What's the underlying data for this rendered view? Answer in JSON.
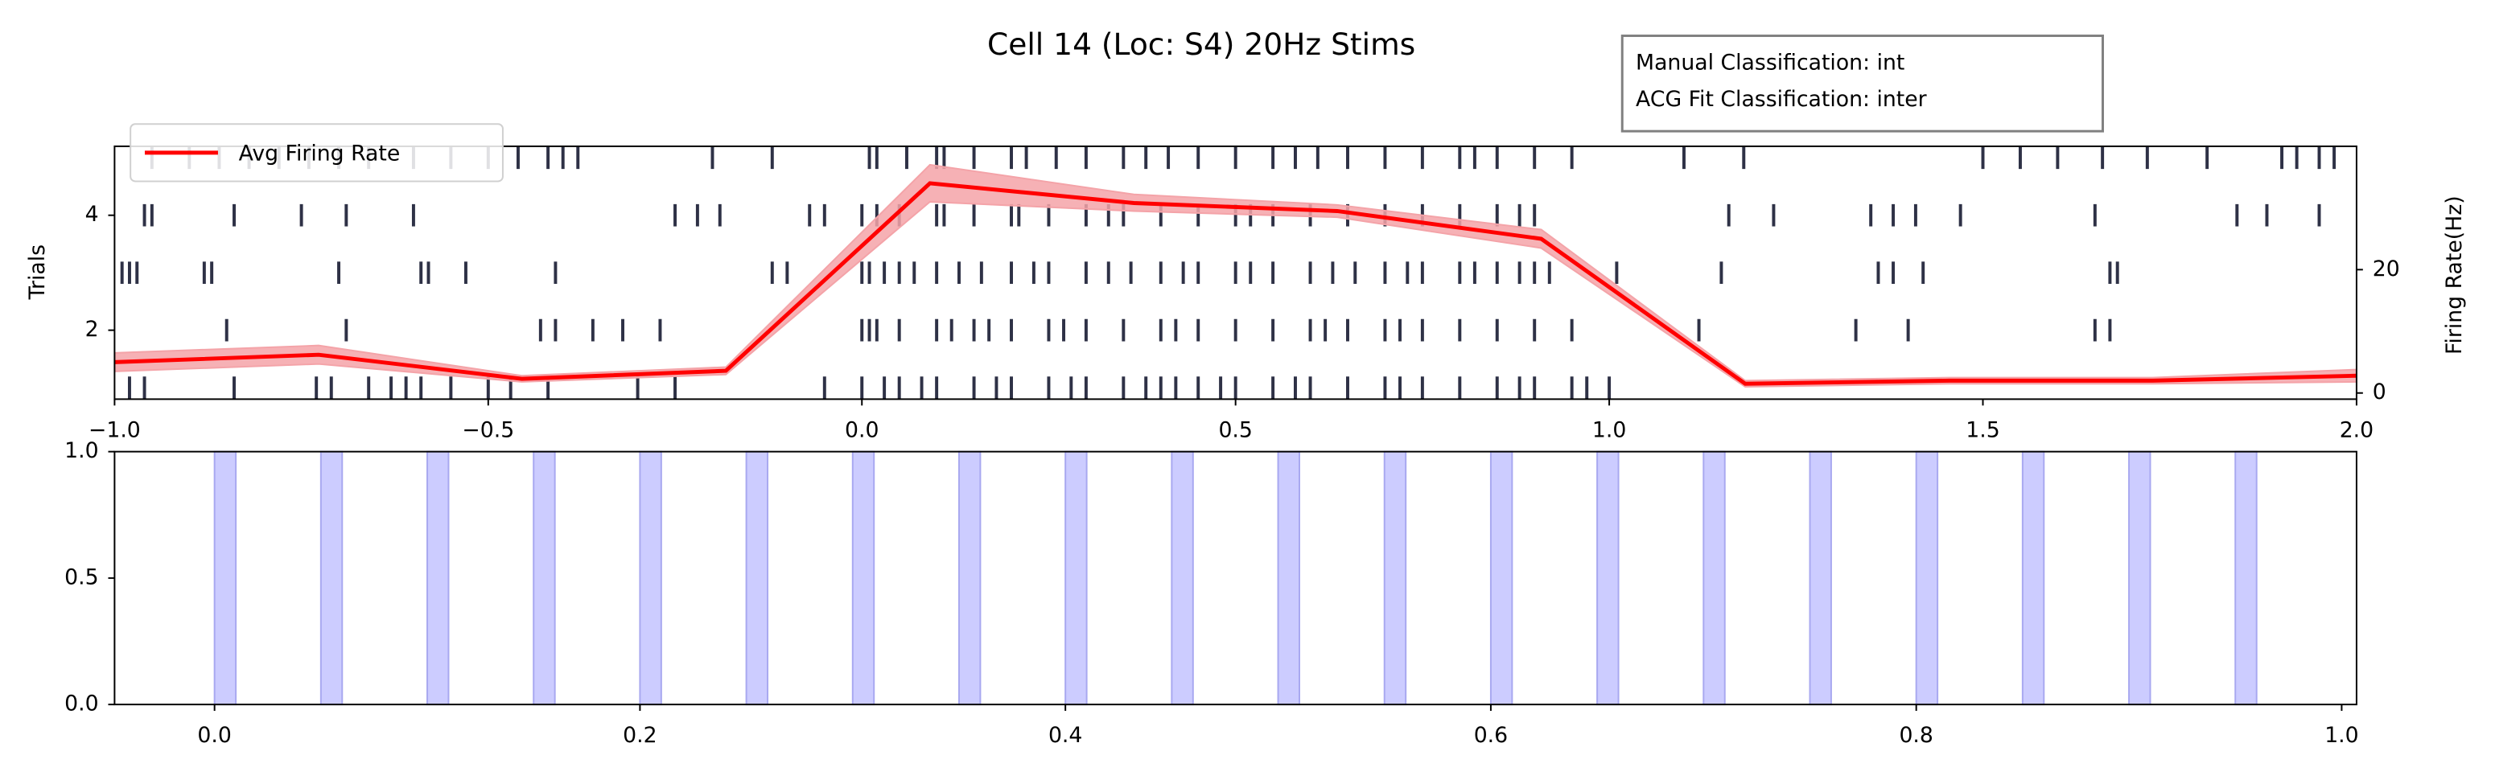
{
  "chart_data": [
    {
      "type": "raster",
      "title": "Cell 14 (Loc: S4) 20Hz Stims",
      "annotation": [
        "Manual Classification: int",
        "ACG Fit Classification: inter"
      ],
      "ylabel": "Trials",
      "y2label": "Firing Rate(Hz)",
      "xlim": [
        -1.0,
        2.0
      ],
      "ylim": [
        0.8,
        5.2
      ],
      "y2lim": [
        -1,
        40
      ],
      "xticks": [
        {
          "value": -1.0,
          "label": "−1.0"
        },
        {
          "value": -0.5,
          "label": "−0.5"
        },
        {
          "value": 0.0,
          "label": "0.0"
        },
        {
          "value": 0.5,
          "label": "0.5"
        },
        {
          "value": 1.0,
          "label": "1.0"
        },
        {
          "value": 1.5,
          "label": "1.5"
        },
        {
          "value": 2.0,
          "label": "2.0"
        }
      ],
      "yticks": [
        2,
        4
      ],
      "y2ticks": [
        0,
        20
      ],
      "raster_color": "#2e3146",
      "raster": [
        {
          "y": 1,
          "x": [
            -0.98,
            -0.96,
            -0.84,
            -0.73,
            -0.71,
            -0.66,
            -0.63,
            -0.61,
            -0.59,
            -0.55,
            -0.5,
            -0.47,
            -0.42,
            -0.3,
            -0.25,
            -0.05,
            0.0,
            0.03,
            0.05,
            0.08,
            0.1,
            0.15,
            0.18,
            0.2,
            0.25,
            0.28,
            0.3,
            0.35,
            0.38,
            0.4,
            0.42,
            0.45,
            0.48,
            0.5,
            0.55,
            0.58,
            0.6,
            0.65,
            0.7,
            0.72,
            0.75,
            0.8,
            0.85,
            0.88,
            0.9,
            0.95,
            0.97,
            1.0
          ]
        },
        {
          "y": 2,
          "x": [
            -0.85,
            -0.69,
            -0.43,
            -0.41,
            -0.36,
            -0.32,
            -0.27,
            0.0,
            0.01,
            0.02,
            0.05,
            0.1,
            0.12,
            0.15,
            0.17,
            0.2,
            0.25,
            0.27,
            0.3,
            0.35,
            0.4,
            0.42,
            0.45,
            0.5,
            0.55,
            0.6,
            0.62,
            0.65,
            0.7,
            0.72,
            0.75,
            0.8,
            0.85,
            0.9,
            0.95,
            1.12,
            1.33,
            1.4,
            1.65,
            1.67
          ]
        },
        {
          "y": 3,
          "x": [
            -0.99,
            -0.98,
            -0.97,
            -0.88,
            -0.87,
            -0.7,
            -0.59,
            -0.58,
            -0.53,
            -0.41,
            -0.12,
            -0.1,
            0.0,
            0.01,
            0.03,
            0.05,
            0.07,
            0.1,
            0.13,
            0.16,
            0.2,
            0.23,
            0.25,
            0.3,
            0.33,
            0.36,
            0.4,
            0.43,
            0.45,
            0.5,
            0.52,
            0.55,
            0.6,
            0.63,
            0.66,
            0.7,
            0.73,
            0.75,
            0.8,
            0.82,
            0.85,
            0.88,
            0.9,
            0.92,
            1.01,
            1.15,
            1.36,
            1.38,
            1.42,
            1.67,
            1.68
          ]
        },
        {
          "y": 4,
          "x": [
            -0.96,
            -0.95,
            -0.84,
            -0.75,
            -0.69,
            -0.6,
            -0.25,
            -0.22,
            -0.19,
            -0.07,
            -0.05,
            0.0,
            0.02,
            0.05,
            0.1,
            0.11,
            0.15,
            0.2,
            0.21,
            0.25,
            0.3,
            0.33,
            0.35,
            0.4,
            0.45,
            0.5,
            0.52,
            0.55,
            0.6,
            0.65,
            0.7,
            0.75,
            0.8,
            0.85,
            0.88,
            0.9,
            1.16,
            1.22,
            1.35,
            1.38,
            1.41,
            1.47,
            1.65,
            1.84,
            1.88,
            1.95
          ]
        },
        {
          "y": 5,
          "x": [
            -0.95,
            -0.9,
            -0.86,
            -0.82,
            -0.78,
            -0.74,
            -0.7,
            -0.66,
            -0.6,
            -0.55,
            -0.5,
            -0.46,
            -0.42,
            -0.4,
            -0.38,
            -0.2,
            -0.12,
            0.01,
            0.02,
            0.06,
            0.1,
            0.11,
            0.15,
            0.2,
            0.22,
            0.26,
            0.3,
            0.35,
            0.38,
            0.41,
            0.45,
            0.5,
            0.55,
            0.58,
            0.61,
            0.65,
            0.7,
            0.75,
            0.8,
            0.82,
            0.85,
            0.9,
            0.95,
            1.1,
            1.18,
            1.5,
            1.55,
            1.6,
            1.66,
            1.72,
            1.8,
            1.9,
            1.92,
            1.95,
            1.97
          ]
        }
      ],
      "series": [
        {
          "name": "Avg Firing Rate",
          "color": "#ff0000",
          "band_color": "#f4a3a8",
          "axis": "y2",
          "x": [
            -1.0,
            -0.727,
            -0.455,
            -0.182,
            0.091,
            0.364,
            0.636,
            0.909,
            1.182,
            1.455,
            1.727,
            2.0
          ],
          "values": [
            5.0,
            6.2,
            2.3,
            3.6,
            34,
            30.8,
            29.5,
            25,
            1.5,
            2.0,
            2.0,
            2.8
          ],
          "lower": [
            3.5,
            4.7,
            1.8,
            3.0,
            31,
            29.5,
            28.5,
            23.5,
            1.0,
            1.5,
            1.5,
            1.8
          ],
          "upper": [
            6.5,
            7.7,
            2.8,
            4.2,
            37,
            32.2,
            30.5,
            26.5,
            2.0,
            2.5,
            2.5,
            3.8
          ]
        }
      ],
      "legend": "upper left"
    },
    {
      "type": "spans",
      "xlim": [
        -0.047,
        1.007
      ],
      "ylim": [
        0,
        1
      ],
      "xticks": [
        {
          "value": 0,
          "label": "0.0"
        },
        {
          "value": 0.2,
          "label": "0.2"
        },
        {
          "value": 0.4,
          "label": "0.4"
        },
        {
          "value": 0.6,
          "label": "0.6"
        },
        {
          "value": 0.8,
          "label": "0.8"
        },
        {
          "value": 1.0,
          "label": "1.0"
        }
      ],
      "yticks": [
        {
          "value": 0,
          "label": "0.0"
        },
        {
          "value": 0.5,
          "label": "0.5"
        },
        {
          "value": 1,
          "label": "1.0"
        }
      ],
      "color": "#ccccff",
      "edge_color": "#a8a8f0",
      "start": [
        0,
        0.05,
        0.1,
        0.15,
        0.2,
        0.25,
        0.3,
        0.35,
        0.4,
        0.45,
        0.5,
        0.55,
        0.6,
        0.65,
        0.7,
        0.75,
        0.8,
        0.85,
        0.9,
        0.95
      ],
      "end": [
        0.01,
        0.06,
        0.11,
        0.16,
        0.21,
        0.26,
        0.31,
        0.36,
        0.41,
        0.46,
        0.51,
        0.56,
        0.61,
        0.66,
        0.71,
        0.76,
        0.81,
        0.86,
        0.91,
        0.96
      ]
    }
  ]
}
